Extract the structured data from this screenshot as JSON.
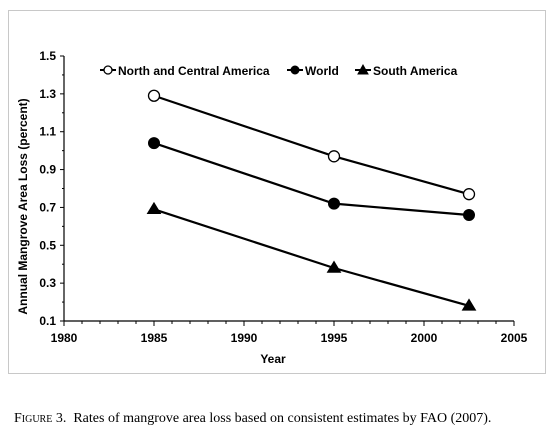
{
  "chart_data": {
    "type": "line",
    "xlabel": "Year",
    "ylabel": "Annual Mangrove Area Loss (percent)",
    "xlim": [
      1980,
      2005
    ],
    "ylim": [
      0.1,
      1.5
    ],
    "x_ticks": [
      "1980",
      "1985",
      "1990",
      "1995",
      "2000",
      "2005"
    ],
    "y_ticks": [
      "0.1",
      "0.3",
      "0.5",
      "0.7",
      "0.9",
      "1.1",
      "1.3",
      "1.5"
    ],
    "legend_position": "top",
    "grid": false,
    "series": [
      {
        "name": "North and Central America",
        "marker": "open-circle",
        "x": [
          1985,
          1995,
          2002.5
        ],
        "y": [
          1.29,
          0.97,
          0.77
        ]
      },
      {
        "name": "World",
        "marker": "filled-circle",
        "x": [
          1985,
          1995,
          2002.5
        ],
        "y": [
          1.04,
          0.72,
          0.66
        ]
      },
      {
        "name": "South America",
        "marker": "filled-triangle",
        "x": [
          1985,
          1995,
          2002.5
        ],
        "y": [
          0.69,
          0.38,
          0.18
        ]
      }
    ]
  },
  "caption": {
    "lead": "Figure 3.",
    "text": "Rates of mangrove area loss based on consistent estimates by FAO (2007)."
  }
}
